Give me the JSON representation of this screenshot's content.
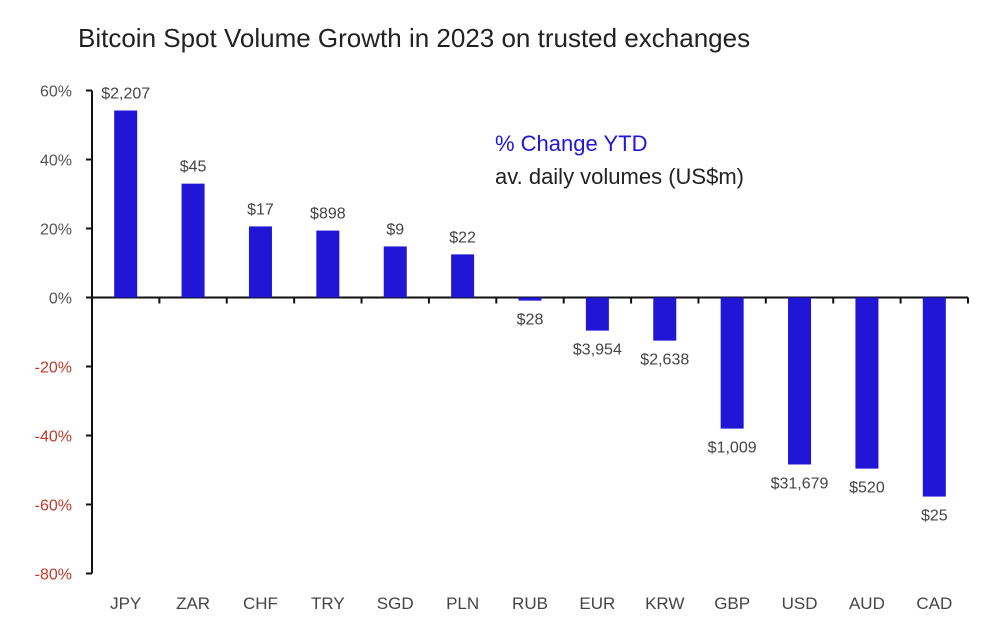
{
  "chart_data": {
    "type": "bar",
    "title": "Bitcoin Spot Volume Growth in 2023 on trusted exchanges",
    "legend": {
      "series_label": "% Change YTD",
      "annotation_label": "av. daily volumes (US$m)"
    },
    "categories": [
      "JPY",
      "ZAR",
      "CHF",
      "TRY",
      "SGD",
      "PLN",
      "RUB",
      "EUR",
      "KRW",
      "GBP",
      "USD",
      "AUD",
      "CAD"
    ],
    "series": [
      {
        "name": "% Change YTD",
        "values": [
          54.2,
          33.0,
          20.6,
          19.4,
          14.8,
          12.5,
          -0.9,
          -9.6,
          -12.5,
          -38.0,
          -48.4,
          -49.6,
          -57.7
        ]
      }
    ],
    "data_labels": [
      "$2,207",
      "$45",
      "$17",
      "$898",
      "$9",
      "$22",
      "$28",
      "$3,954",
      "$2,638",
      "$1,009",
      "$31,679",
      "$520",
      "$25"
    ],
    "ylim": [
      -80,
      60
    ],
    "yticks": [
      60,
      40,
      20,
      0,
      -20,
      -40,
      -60,
      -80
    ],
    "ytick_labels": [
      "60%",
      "40%",
      "20%",
      "0%",
      "-20%",
      "-40%",
      "-60%",
      "-80%"
    ],
    "xlabel": "",
    "ylabel": "",
    "grid": false,
    "legend_placement": "top-right",
    "colors": {
      "bar": "#2116d6",
      "positive_tick": "#555555",
      "negative_tick": "#c0392b",
      "legend_series": "#2116d6",
      "text": "#222222"
    }
  }
}
